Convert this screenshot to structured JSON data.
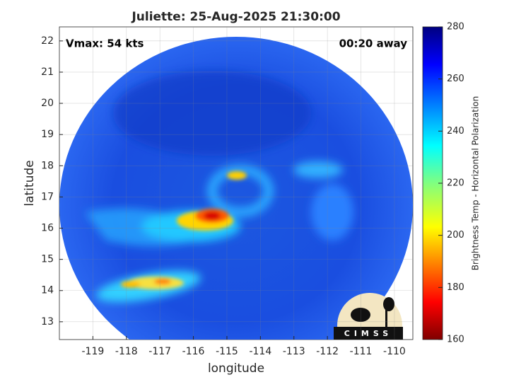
{
  "chart_data": {
    "type": "image",
    "title": "Juliette: 25-Aug-2025 21:30:00",
    "annotations": {
      "vmax": "Vmax: 54 kts",
      "age": "00:20 away"
    },
    "xlabel": "longitude",
    "ylabel": "latitude",
    "xlim": [
      -120,
      -109.45
    ],
    "ylim": [
      12.43,
      22.45
    ],
    "xticks": [
      -119,
      -118,
      -117,
      -116,
      -115,
      -114,
      -113,
      -112,
      -111,
      -110
    ],
    "yticks": [
      13,
      14,
      15,
      16,
      17,
      18,
      19,
      20,
      21,
      22
    ],
    "grid": true,
    "colorbar": {
      "label": "Brightness Temp - Horizontal Polarization",
      "clim": [
        160,
        280
      ],
      "ticks": [
        160,
        180,
        200,
        220,
        240,
        260,
        280
      ]
    },
    "logo_text": "CIMSS"
  }
}
